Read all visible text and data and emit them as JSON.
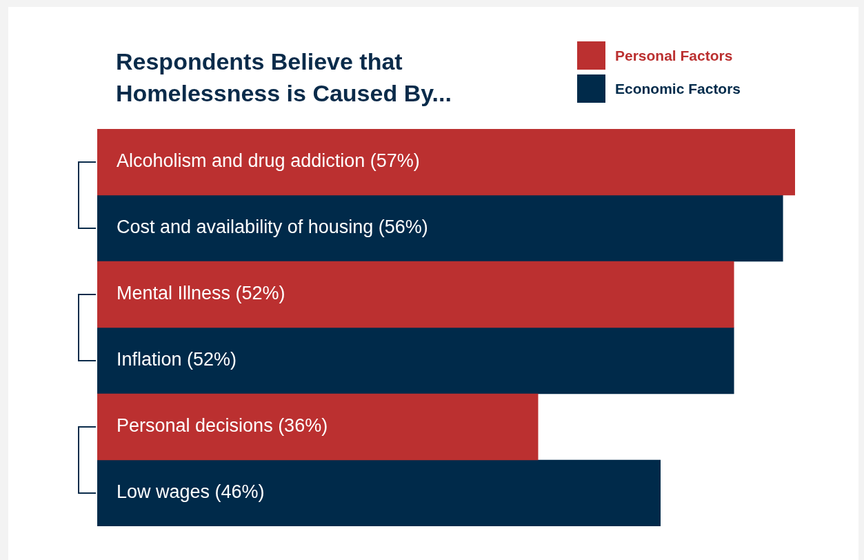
{
  "chart_data": {
    "type": "bar",
    "orientation": "horizontal",
    "title": "Respondents Believe that\nHomelessness is Caused By...",
    "legend": "top right",
    "data_labels": true,
    "categories": [
      "Alcoholism and drug addiction",
      "Cost and availability of housing",
      "Mental Illness",
      "Inflation",
      "Personal decisions",
      "Low wages"
    ],
    "series": [
      {
        "name": "Personal Factors",
        "color": "#bb3030",
        "values": [
          57,
          null,
          52,
          null,
          36,
          null
        ],
        "value_labels": [
          "(57%)",
          null,
          "(52%)",
          null,
          "(36%)",
          null
        ]
      },
      {
        "name": "Economic Factors",
        "color": "#002a4a",
        "values": [
          null,
          56,
          null,
          52,
          null,
          46
        ],
        "value_labels": [
          null,
          "(56%)",
          null,
          "(52%)",
          null,
          "(46%)"
        ]
      }
    ]
  }
}
